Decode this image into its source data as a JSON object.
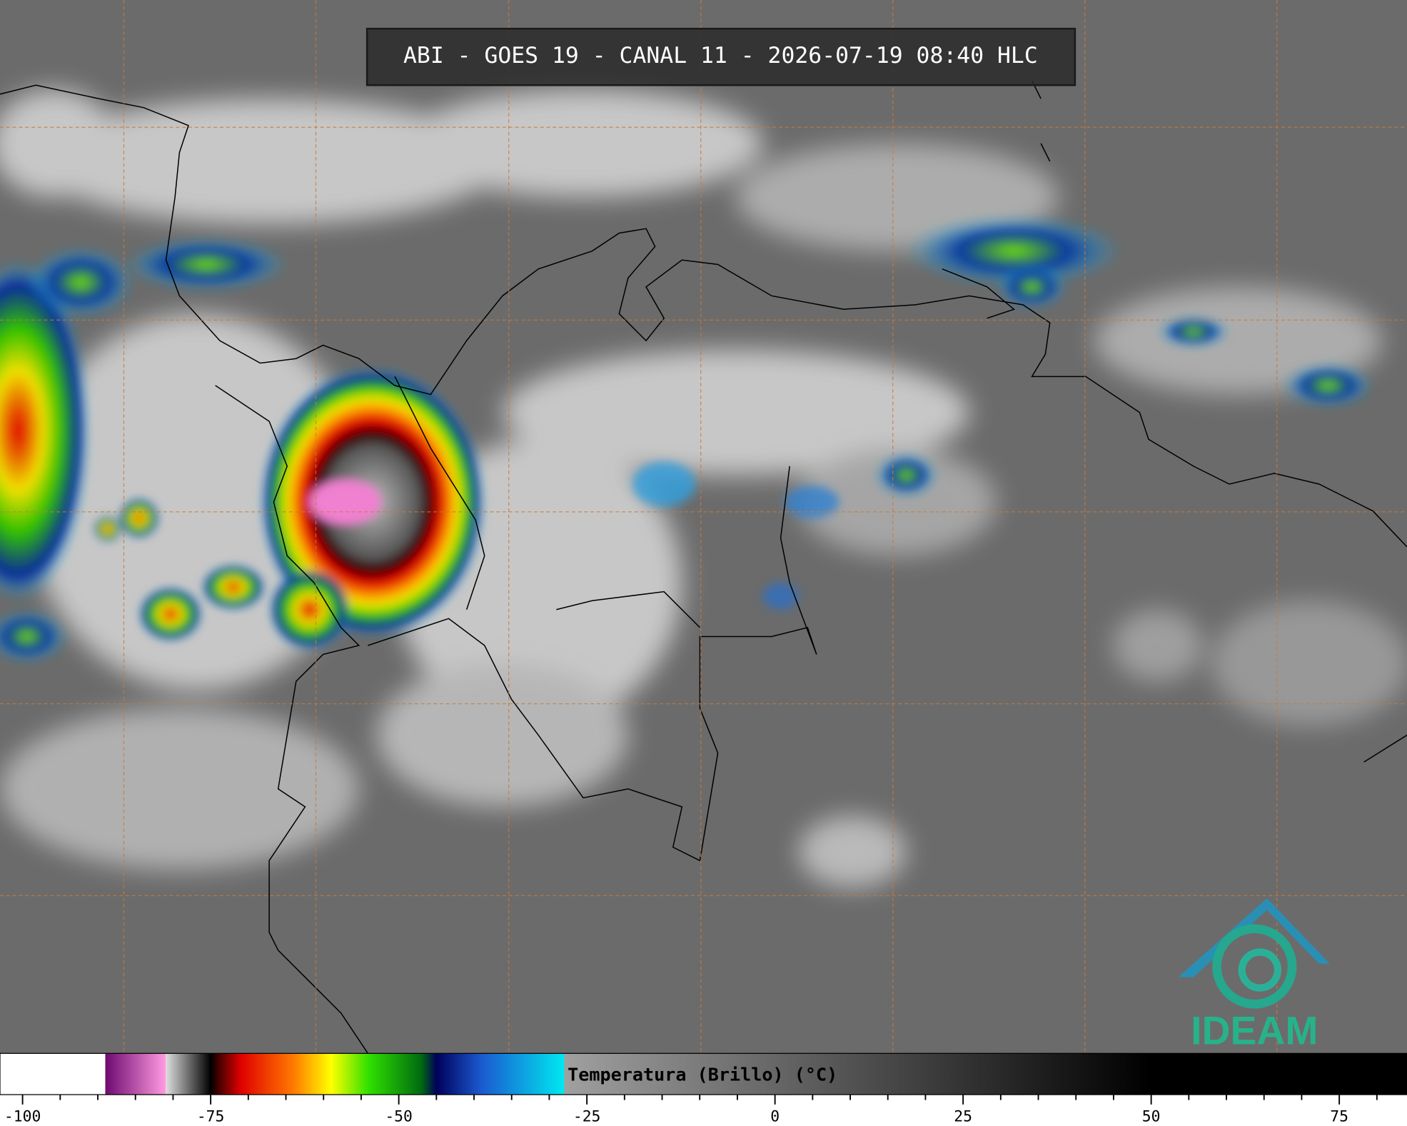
{
  "header": {
    "title": "ABI - GOES 19 - CANAL 11 - 2026-07-19 08:40 HLC"
  },
  "logo": {
    "text": "IDEAM"
  },
  "colorbar": {
    "label": "Temperatura (Brillo) (°C)",
    "lim": [
      -103,
      84
    ],
    "ticks": [
      -100,
      -75,
      -50,
      -25,
      0,
      25,
      50,
      75
    ],
    "minor_ticks": [
      -95,
      -90,
      -85,
      -80,
      -70,
      -65,
      -60,
      -55,
      -45,
      -40,
      -35,
      -30,
      -20,
      -15,
      -10,
      -5,
      5,
      10,
      15,
      20,
      30,
      35,
      40,
      45,
      55,
      60,
      65,
      70,
      80
    ],
    "stops": [
      {
        "value": -89,
        "color": "#ffffff"
      },
      {
        "value": -89,
        "color": "#6e0a70"
      },
      {
        "value": -81,
        "color": "#ff9ae0"
      },
      {
        "value": -81,
        "color": "#e0e0e0"
      },
      {
        "value": -75,
        "color": "#000000"
      },
      {
        "value": -74,
        "color": "#400000"
      },
      {
        "value": -71,
        "color": "#e00000"
      },
      {
        "value": -64,
        "color": "#ff7a00"
      },
      {
        "value": -59,
        "color": "#ffff00"
      },
      {
        "value": -54,
        "color": "#30e000"
      },
      {
        "value": -47,
        "color": "#006a10"
      },
      {
        "value": -45,
        "color": "#00005a"
      },
      {
        "value": -39,
        "color": "#1a5ad0"
      },
      {
        "value": -28,
        "color": "#00e8f0"
      },
      {
        "value": -28,
        "color": "#a0a0a0"
      },
      {
        "value": 50,
        "color": "#000000"
      }
    ]
  }
}
